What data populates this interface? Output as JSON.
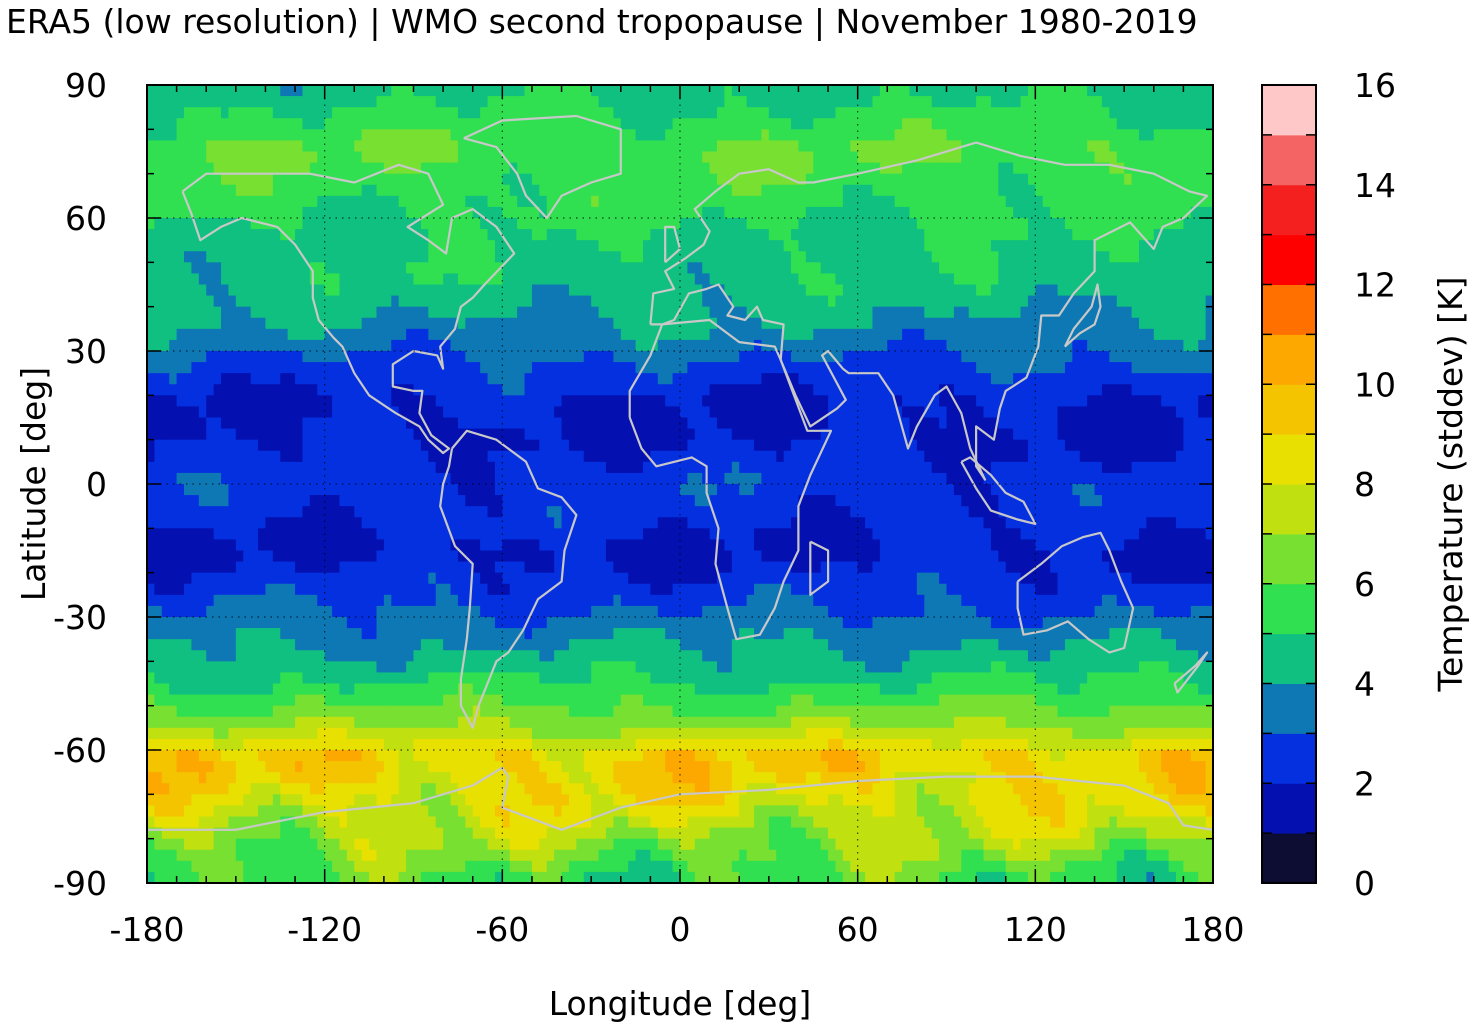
{
  "chart_data": {
    "type": "heatmap",
    "title": "ERA5 (low resolution) | WMO second tropopause | November 1980-2019",
    "xlabel": "Longitude [deg]",
    "ylabel": "Latitude [deg]",
    "xlim": [
      -180,
      180
    ],
    "ylim": [
      -90,
      90
    ],
    "xticks": [
      "-180",
      "-120",
      "-60",
      "0",
      "60",
      "120",
      "180"
    ],
    "yticks": [
      "90",
      "60",
      "30",
      "0",
      "-30",
      "-60",
      "-90"
    ],
    "grid": true,
    "colorbar": {
      "label": "Temperature (stddev) [K]",
      "range": [
        0,
        16
      ],
      "ticks": [
        "0",
        "2",
        "4",
        "6",
        "8",
        "10",
        "12",
        "14",
        "16"
      ],
      "colors": [
        "#0d0d33",
        "#0410b0",
        "#0530e0",
        "#0e78b4",
        "#10c080",
        "#30e050",
        "#78e030",
        "#c0e010",
        "#e8e000",
        "#f4c400",
        "#fca800",
        "#ff7000",
        "#ff0000",
        "#f42020",
        "#f46464",
        "#ffc8c8"
      ]
    },
    "zonal_profile": {
      "lat": [
        -90,
        -80,
        -70,
        -62,
        -55,
        -45,
        -35,
        -25,
        -15,
        -8,
        0,
        10,
        18,
        25,
        35,
        45,
        55,
        65,
        75,
        85,
        90
      ],
      "value": [
        5.5,
        7.0,
        8.5,
        9.3,
        7.0,
        5.0,
        3.8,
        2.6,
        1.8,
        2.3,
        2.6,
        1.9,
        1.9,
        2.6,
        3.8,
        4.6,
        4.8,
        5.4,
        6.0,
        5.0,
        4.6
      ]
    },
    "overlay": "coastlines"
  }
}
